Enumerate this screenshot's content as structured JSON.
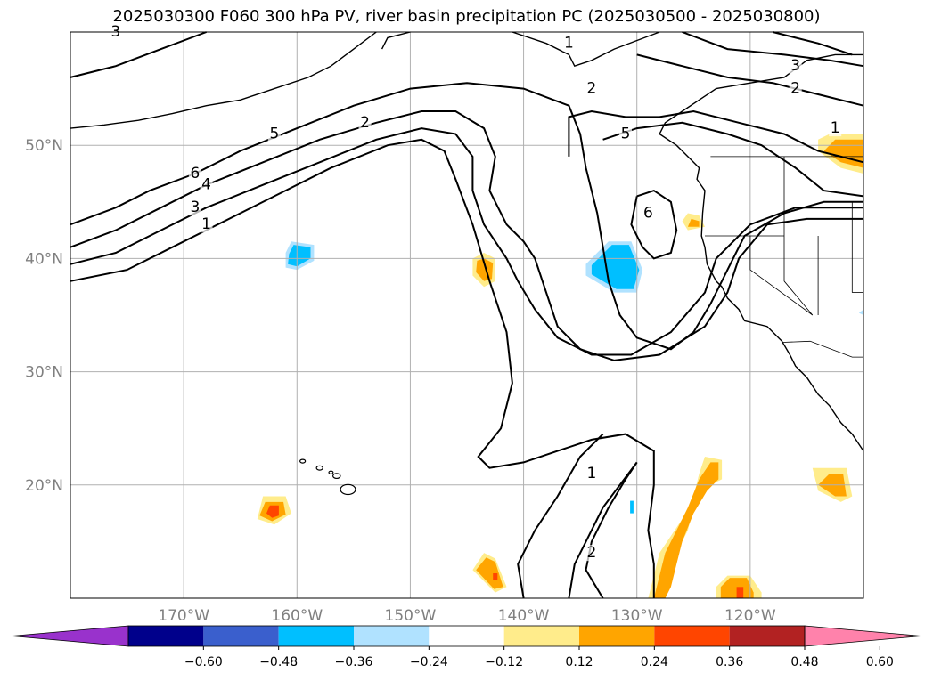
{
  "title": "2025030300 F060 300 hPa PV, river basin precipitation PC (2025030500 - 2025030800)",
  "map": {
    "lat_range": [
      10,
      60
    ],
    "lon_range": [
      -180,
      -110
    ],
    "lat_lines": [
      {
        "value": 50,
        "label": "50°N"
      },
      {
        "value": 40,
        "label": "40°N"
      },
      {
        "value": 30,
        "label": "30°N"
      },
      {
        "value": 20,
        "label": "20°N"
      }
    ],
    "lon_lines": [
      {
        "value": -170,
        "label": "170°W"
      },
      {
        "value": -160,
        "label": "160°W"
      },
      {
        "value": -150,
        "label": "150°W"
      },
      {
        "value": -140,
        "label": "140°W"
      },
      {
        "value": -130,
        "label": "130°W"
      },
      {
        "value": -120,
        "label": "120°W"
      }
    ],
    "contour_labels": [
      {
        "text": "6",
        "lon": -169,
        "lat": 47.5
      },
      {
        "text": "4",
        "lon": -168,
        "lat": 46.5
      },
      {
        "text": "3",
        "lon": -169,
        "lat": 44.5
      },
      {
        "text": "1",
        "lon": -168,
        "lat": 43
      },
      {
        "text": "5",
        "lon": -162,
        "lat": 51
      },
      {
        "text": "2",
        "lon": -154,
        "lat": 52
      },
      {
        "text": "1",
        "lon": -136,
        "lat": 59
      },
      {
        "text": "2",
        "lon": -134,
        "lat": 55
      },
      {
        "text": "5",
        "lon": -131,
        "lat": 51
      },
      {
        "text": "6",
        "lon": -129,
        "lat": 44
      },
      {
        "text": "3",
        "lon": -116,
        "lat": 57
      },
      {
        "text": "2",
        "lon": -116,
        "lat": 55
      },
      {
        "text": "1",
        "lon": -112.5,
        "lat": 51.5
      },
      {
        "text": "1",
        "lon": -134,
        "lat": 21
      },
      {
        "text": "2",
        "lon": -134,
        "lat": 14
      },
      {
        "text": "3",
        "lon": -176,
        "lat": 60
      }
    ]
  },
  "colorbar": {
    "colors": [
      "#9932cc",
      "#00008b",
      "#3a5fcd",
      "#00bfff",
      "#b0e2ff",
      "#ffffff",
      "#ffec8b",
      "#ffa500",
      "#ff4500",
      "#b22222",
      "#ff82ab"
    ],
    "ticks": [
      "−0.60",
      "−0.48",
      "−0.36",
      "−0.24",
      "−0.12",
      "0.12",
      "0.24",
      "0.36",
      "0.48",
      "0.60"
    ]
  },
  "colors": {
    "coast": "#000000",
    "grid": "#b0b0b0",
    "contour": "#000000"
  }
}
